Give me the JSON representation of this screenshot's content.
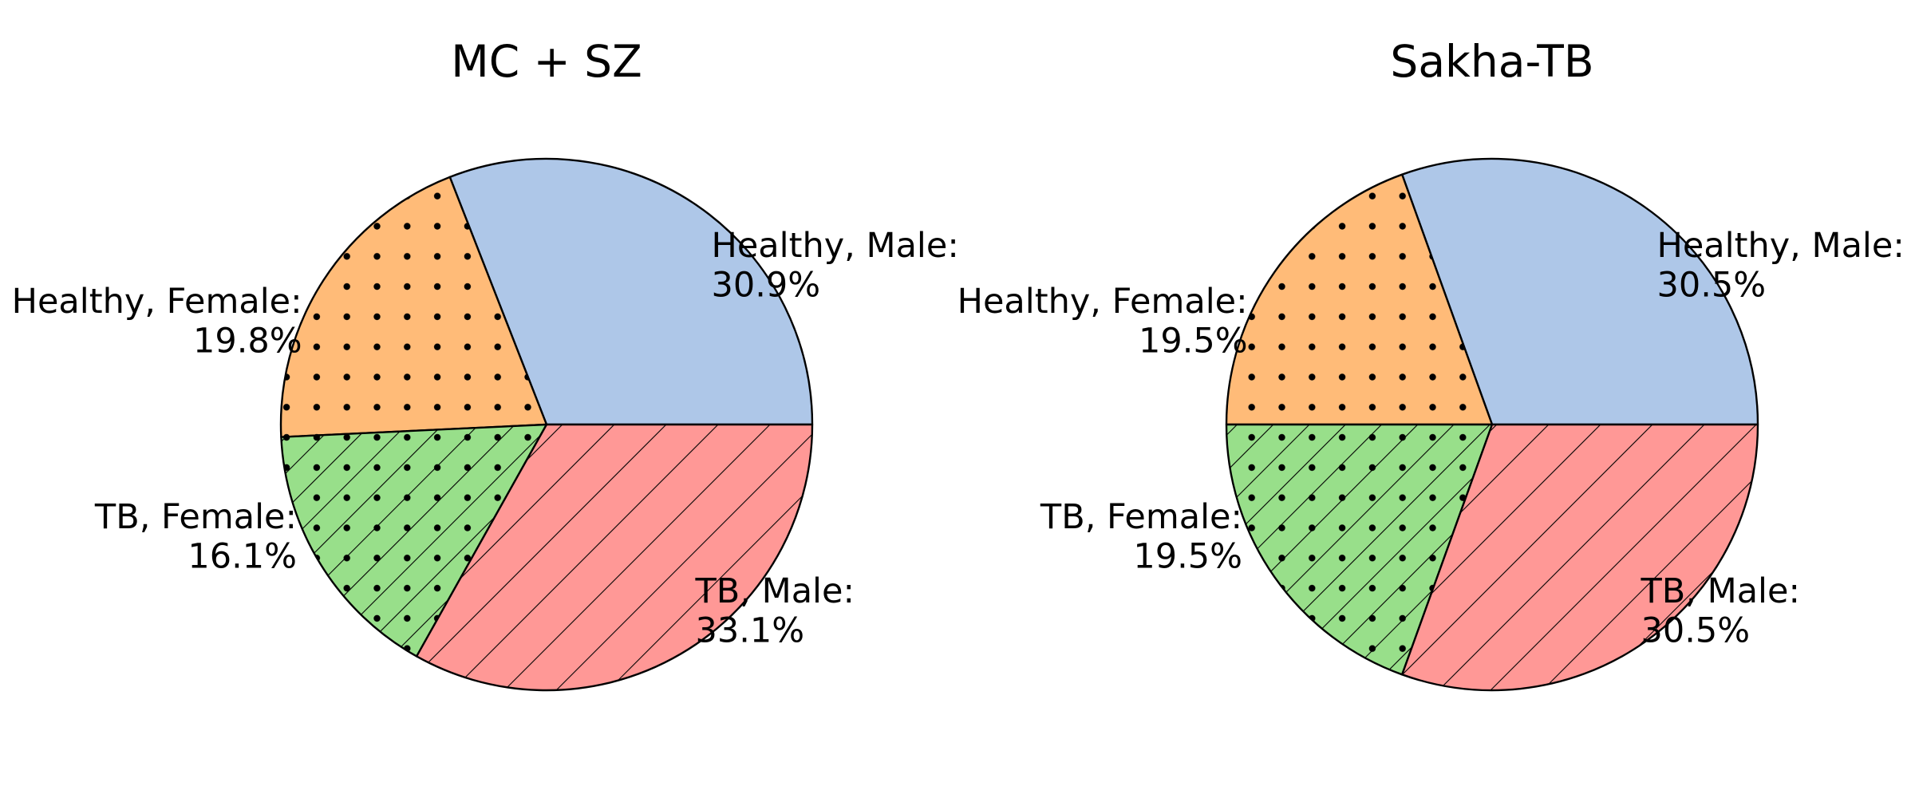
{
  "chart_data": [
    {
      "type": "pie",
      "title": "MC + SZ",
      "slices": [
        {
          "label": "Healthy, Male",
          "value": 30.9,
          "value_text": "30.9%",
          "color": "#aec7e8",
          "hatch": "none"
        },
        {
          "label": "Healthy, Female",
          "value": 19.8,
          "value_text": "19.8%",
          "color": "#ffbb78",
          "hatch": "dots"
        },
        {
          "label": "TB, Female",
          "value": 16.1,
          "value_text": "16.1%",
          "color": "#98df8a",
          "hatch": "dots-diagonal"
        },
        {
          "label": "TB, Male",
          "value": 33.1,
          "value_text": "33.1%",
          "color": "#ff9896",
          "hatch": "diagonal"
        }
      ]
    },
    {
      "type": "pie",
      "title": "Sakha-TB",
      "slices": [
        {
          "label": "Healthy, Male",
          "value": 30.5,
          "value_text": "30.5%",
          "color": "#aec7e8",
          "hatch": "none"
        },
        {
          "label": "Healthy, Female",
          "value": 19.5,
          "value_text": "19.5%",
          "color": "#ffbb78",
          "hatch": "dots"
        },
        {
          "label": "TB, Female",
          "value": 19.5,
          "value_text": "19.5%",
          "color": "#98df8a",
          "hatch": "dots-diagonal"
        },
        {
          "label": "TB, Male",
          "value": 30.5,
          "value_text": "30.5%",
          "color": "#ff9896",
          "hatch": "diagonal"
        }
      ]
    }
  ]
}
